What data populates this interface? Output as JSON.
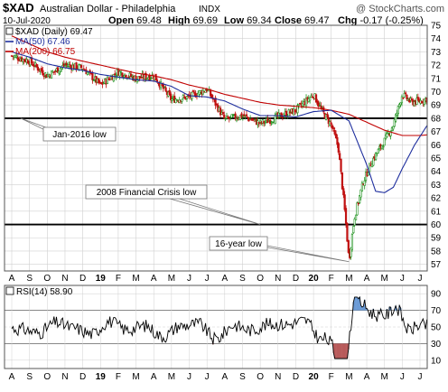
{
  "header": {
    "symbol": "$XAD",
    "name": "Australian Dollar - Philadelphia",
    "exchange": "INDX",
    "watermark": "@ StockCharts.com",
    "date": "10-Jul-2020",
    "ohlc": [
      {
        "label": "Open",
        "value": "69.48"
      },
      {
        "label": "High",
        "value": "69.69"
      },
      {
        "label": "Low",
        "value": "69.34"
      },
      {
        "label": "Close",
        "value": "69.47"
      },
      {
        "label": "Chg",
        "value": "-0.17 (-0.25%)"
      }
    ]
  },
  "legend": [
    {
      "text": "$XAD (Daily) 69.47",
      "color": "#000000",
      "marker": "box"
    },
    {
      "text": "MA(50) 67.46",
      "color": "#1f2f9e",
      "marker": "line"
    },
    {
      "text": "MA(200) 66.75",
      "color": "#c00000",
      "marker": "line"
    }
  ],
  "colors": {
    "up": "#1a8f1a",
    "down": "#c01010",
    "ma50": "#1f2f9e",
    "ma200": "#c00000",
    "grid": "#d0d0d0",
    "rsi_line": "#000000",
    "rsi_fill_high": "#6b9bd6",
    "rsi_fill_low": "#b85a5a"
  },
  "months": [
    "A",
    "S",
    "O",
    "N",
    "D",
    "19",
    "F",
    "M",
    "A",
    "M",
    "J",
    "J",
    "A",
    "S",
    "O",
    "N",
    "D",
    "20",
    "F",
    "M",
    "A",
    "M",
    "J",
    "J"
  ],
  "rsi": {
    "label": "RSI(14) 58.90",
    "ylim": [
      0,
      100
    ],
    "ticks": [
      10,
      30,
      50,
      70,
      90
    ],
    "bands": [
      30,
      70
    ]
  },
  "chart_data": {
    "type": "candlestick",
    "ylim": [
      56.5,
      75
    ],
    "yticks": [
      57,
      58,
      59,
      60,
      61,
      62,
      63,
      64,
      65,
      66,
      67,
      68,
      69,
      70,
      71,
      72,
      73,
      74,
      75
    ],
    "x_months": [
      "A",
      "S",
      "O",
      "N",
      "D",
      "19",
      "F",
      "M",
      "A",
      "M",
      "J",
      "J",
      "A",
      "S",
      "O",
      "N",
      "D",
      "20",
      "F",
      "M",
      "A",
      "M",
      "J",
      "J"
    ],
    "series": [
      {
        "name": "$XAD (Daily)",
        "anchors": [
          [
            0,
            72.7
          ],
          [
            1,
            72.3
          ],
          [
            2,
            71.2
          ],
          [
            3,
            72.0
          ],
          [
            4,
            71.8
          ],
          [
            5,
            70.5
          ],
          [
            6,
            71.5
          ],
          [
            7,
            71.0
          ],
          [
            8,
            71.2
          ],
          [
            9,
            69.4
          ],
          [
            10,
            69.6
          ],
          [
            11,
            70.2
          ],
          [
            12,
            67.9
          ],
          [
            13,
            68.2
          ],
          [
            14,
            67.6
          ],
          [
            15,
            68.1
          ],
          [
            16,
            68.6
          ],
          [
            17,
            69.8
          ],
          [
            17.5,
            68.5
          ],
          [
            18,
            67.5
          ],
          [
            18.4,
            65.8
          ],
          [
            18.8,
            60.5
          ],
          [
            19.0,
            57.3
          ],
          [
            19.3,
            60.5
          ],
          [
            19.8,
            63.2
          ],
          [
            20.3,
            64.8
          ],
          [
            21,
            66.3
          ],
          [
            21.5,
            67.5
          ],
          [
            22,
            69.8
          ],
          [
            22.5,
            69.2
          ],
          [
            23,
            69.3
          ],
          [
            23.4,
            69.47
          ]
        ]
      },
      {
        "name": "MA(50)",
        "values": [
          [
            0,
            73.0
          ],
          [
            1,
            72.6
          ],
          [
            2,
            72.1
          ],
          [
            3,
            71.8
          ],
          [
            4,
            71.6
          ],
          [
            5,
            71.3
          ],
          [
            6,
            71.1
          ],
          [
            7,
            70.9
          ],
          [
            8,
            70.8
          ],
          [
            9,
            70.4
          ],
          [
            10,
            69.7
          ],
          [
            11,
            69.6
          ],
          [
            12,
            69.3
          ],
          [
            13,
            68.7
          ],
          [
            14,
            68.2
          ],
          [
            15,
            68.2
          ],
          [
            16,
            68.1
          ],
          [
            17,
            68.5
          ],
          [
            18,
            68.6
          ],
          [
            19,
            67.8
          ],
          [
            20,
            64.5
          ],
          [
            20.5,
            62.5
          ],
          [
            21,
            62.4
          ],
          [
            21.5,
            62.8
          ],
          [
            22,
            64.2
          ],
          [
            22.7,
            66.0
          ],
          [
            23.4,
            67.46
          ]
        ]
      },
      {
        "name": "MA(200)",
        "values": [
          [
            0,
            74.2
          ],
          [
            1,
            73.6
          ],
          [
            2,
            73.0
          ],
          [
            3,
            72.6
          ],
          [
            4,
            72.3
          ],
          [
            5,
            72.0
          ],
          [
            6,
            71.7
          ],
          [
            7,
            71.4
          ],
          [
            8,
            71.2
          ],
          [
            9,
            70.9
          ],
          [
            10,
            70.5
          ],
          [
            11,
            70.2
          ],
          [
            12,
            69.8
          ],
          [
            13,
            69.5
          ],
          [
            14,
            69.2
          ],
          [
            15,
            69.0
          ],
          [
            16,
            68.9
          ],
          [
            17,
            68.8
          ],
          [
            18,
            68.6
          ],
          [
            19,
            68.3
          ],
          [
            20,
            67.7
          ],
          [
            21,
            67.1
          ],
          [
            22,
            66.7
          ],
          [
            23,
            66.7
          ],
          [
            23.4,
            66.75
          ]
        ]
      }
    ],
    "hlines": [
      68.0,
      60.0
    ],
    "annotations": [
      {
        "text": "Jan-2016 low",
        "target": [
          0.5,
          68.0
        ]
      },
      {
        "text": "2008 Financial Crisis low",
        "target": [
          14.0,
          60.0
        ]
      },
      {
        "text": "16-year low",
        "target": [
          19.0,
          57.2
        ]
      }
    ]
  }
}
